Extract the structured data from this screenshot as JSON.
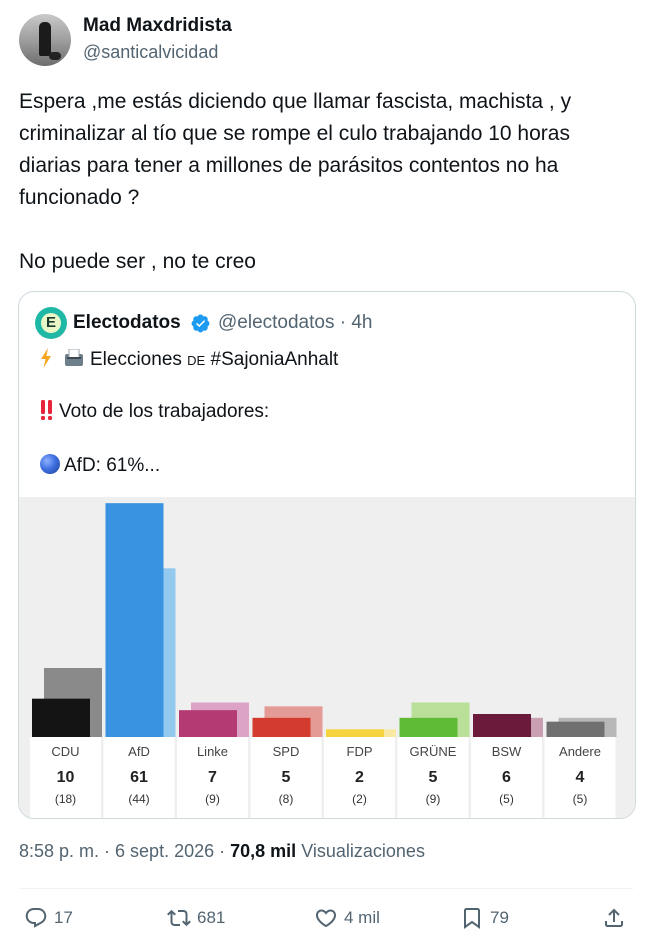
{
  "author": {
    "name": "Mad Maxdridista",
    "handle": "@santicalvicidad"
  },
  "tweet": {
    "lines": [
      "Espera ,me estás diciendo que llamar fascista, machista , y criminalizar al tío que se rompe el culo trabajando 10 horas diarias para tener a millones de parásitos contentos no ha funcionado ?",
      "No puede ser , no te creo"
    ]
  },
  "quote": {
    "name": "Electodatos",
    "handle": "@electodatos · 4h",
    "line1_prefix": "Elecciones",
    "line1_de": "de",
    "line1_hashtag": "#SajoniaAnhalt",
    "line2": "Voto de los trabajadores:",
    "line3": "AfD: 61%..."
  },
  "chart_data": {
    "type": "bar",
    "categories": [
      "CDU",
      "AfD",
      "Linke",
      "SPD",
      "FDP",
      "GRÜNE",
      "BSW",
      "Andere"
    ],
    "series": [
      {
        "values": [
          10,
          61,
          7,
          5,
          2,
          5,
          6,
          4
        ]
      },
      {
        "values": [
          18,
          44,
          9,
          8,
          2,
          9,
          5,
          5
        ]
      }
    ],
    "value_labels": [
      "10",
      "61",
      "7",
      "5",
      "2",
      "5",
      "6",
      "4"
    ],
    "prev_labels": [
      "(18)",
      "(44)",
      "(9)",
      "(8)",
      "(2)",
      "(9)",
      "(5)",
      "(5)"
    ],
    "colors": {
      "current": [
        "#141414",
        "#3a93e0",
        "#b43a73",
        "#d23b2d",
        "#f5d33c",
        "#5fbb36",
        "#6b1a3b",
        "#707070"
      ],
      "previous": [
        "#8a8a8a",
        "#93c8ef",
        "#dca3c6",
        "#e49a95",
        "#f8e8a2",
        "#b9df99",
        "#c8a0b2",
        "#b8b8b8"
      ]
    },
    "ylim": [
      0,
      65
    ],
    "grid": false
  },
  "footer": {
    "time": "8:58 p. m. · 6 sept. 2026 ·",
    "views": "70,8 mil",
    "views_label": "Visualizaciones"
  },
  "actions": {
    "replies": "17",
    "reposts": "681",
    "likes": "4 mil",
    "bookmarks": "79"
  },
  "colors": {
    "text": "#0f1419",
    "secondary": "#536471",
    "verified": "#1d9bf0",
    "border": "#cfd9de"
  },
  "icons": [
    "verified-badge-icon",
    "lightning-icon",
    "ballot-box-icon",
    "exclamation-icon",
    "blue-circle-icon",
    "reply-icon",
    "repost-icon",
    "like-icon",
    "bookmark-icon",
    "share-icon"
  ]
}
